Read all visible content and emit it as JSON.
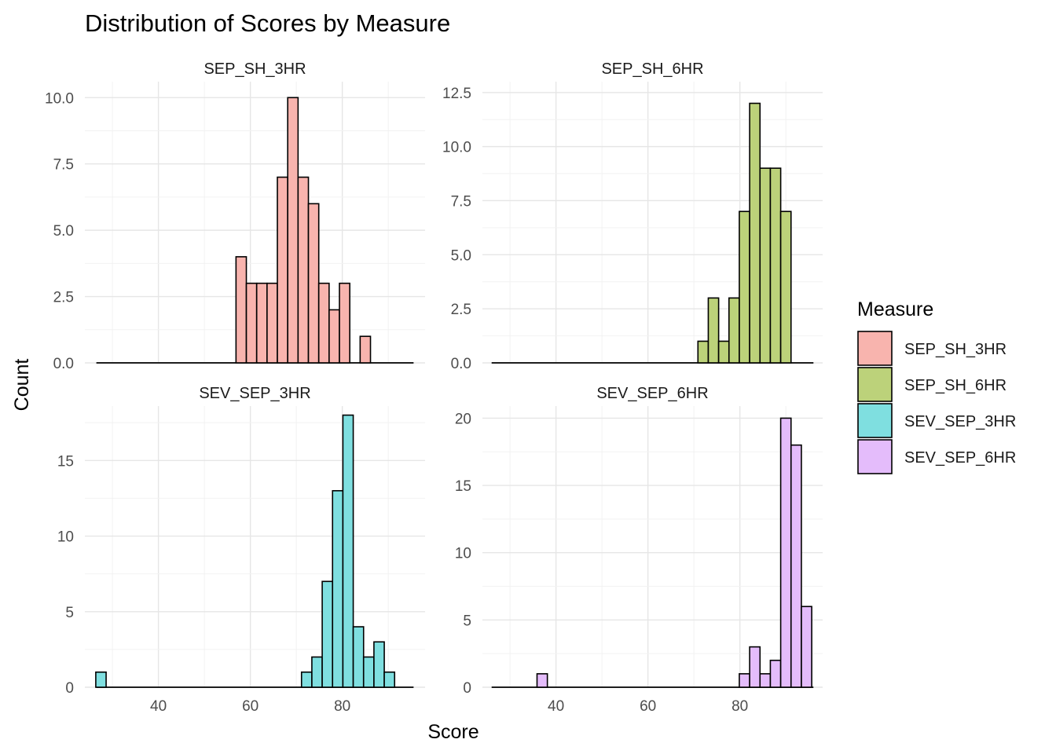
{
  "chart_data": {
    "type": "bar",
    "title": "Distribution of Scores by Measure",
    "xlabel": "Score",
    "ylabel": "Count",
    "legend": {
      "title": "Measure",
      "position": "right",
      "items": [
        {
          "label": "SEP_SH_3HR",
          "color": "#f8b4ae"
        },
        {
          "label": "SEP_SH_6HR",
          "color": "#bcd27a"
        },
        {
          "label": "SEV_SEP_3HR",
          "color": "#7fdfe0"
        },
        {
          "label": "SEV_SEP_6HR",
          "color": "#e4bcfb"
        }
      ]
    },
    "xlim": [
      24,
      98
    ],
    "x_ticks": [
      "40",
      "60",
      "80"
    ],
    "grid": true,
    "bar_outline": "#000000",
    "panels": [
      {
        "name": "SEP_SH_3HR",
        "color": "#f8b4ae",
        "ylim": [
          0,
          10.6
        ],
        "y_ticks": [
          "0.0",
          "2.5",
          "5.0",
          "7.5",
          "10.0"
        ],
        "range": [
          26.5,
          95.5
        ],
        "bars": [
          {
            "x": 58.0,
            "count": 4
          },
          {
            "x": 60.25,
            "count": 3
          },
          {
            "x": 62.5,
            "count": 3
          },
          {
            "x": 64.75,
            "count": 3
          },
          {
            "x": 67.0,
            "count": 7
          },
          {
            "x": 69.25,
            "count": 10
          },
          {
            "x": 71.5,
            "count": 7
          },
          {
            "x": 73.75,
            "count": 6
          },
          {
            "x": 76.0,
            "count": 3
          },
          {
            "x": 78.25,
            "count": 2
          },
          {
            "x": 80.5,
            "count": 3
          },
          {
            "x": 82.75,
            "count": 0
          },
          {
            "x": 85.0,
            "count": 1
          }
        ]
      },
      {
        "name": "SEP_SH_6HR",
        "color": "#bcd27a",
        "ylim": [
          0,
          13.0
        ],
        "y_ticks": [
          "0.0",
          "2.5",
          "5.0",
          "7.5",
          "10.0",
          "12.5"
        ],
        "range": [
          26.0,
          96.0
        ],
        "bars": [
          {
            "x": 72.0,
            "count": 1
          },
          {
            "x": 74.25,
            "count": 3
          },
          {
            "x": 76.5,
            "count": 1
          },
          {
            "x": 78.75,
            "count": 3
          },
          {
            "x": 81.0,
            "count": 7
          },
          {
            "x": 83.25,
            "count": 12
          },
          {
            "x": 85.5,
            "count": 9
          },
          {
            "x": 87.75,
            "count": 9
          },
          {
            "x": 90.0,
            "count": 7
          }
        ]
      },
      {
        "name": "SEV_SEP_3HR",
        "color": "#7fdfe0",
        "ylim": [
          0,
          18.6
        ],
        "y_ticks": [
          "0",
          "5",
          "10",
          "15"
        ],
        "range": [
          26.5,
          95.5
        ],
        "bars": [
          {
            "x": 27.5,
            "count": 1
          },
          {
            "x": 72.25,
            "count": 1
          },
          {
            "x": 74.5,
            "count": 2
          },
          {
            "x": 76.75,
            "count": 7
          },
          {
            "x": 79.0,
            "count": 13
          },
          {
            "x": 81.25,
            "count": 18
          },
          {
            "x": 83.5,
            "count": 4
          },
          {
            "x": 85.75,
            "count": 2
          },
          {
            "x": 88.0,
            "count": 3
          },
          {
            "x": 90.25,
            "count": 1
          }
        ]
      },
      {
        "name": "SEV_SEP_6HR",
        "color": "#e4bcfb",
        "ylim": [
          0,
          20.9
        ],
        "y_ticks": [
          "0",
          "5",
          "10",
          "15",
          "20"
        ],
        "range": [
          26.0,
          96.0
        ],
        "bars": [
          {
            "x": 37.0,
            "count": 1
          },
          {
            "x": 81.0,
            "count": 1
          },
          {
            "x": 83.25,
            "count": 3
          },
          {
            "x": 85.5,
            "count": 1
          },
          {
            "x": 87.75,
            "count": 2
          },
          {
            "x": 90.0,
            "count": 20
          },
          {
            "x": 92.25,
            "count": 18
          },
          {
            "x": 94.5,
            "count": 6
          }
        ]
      }
    ]
  }
}
